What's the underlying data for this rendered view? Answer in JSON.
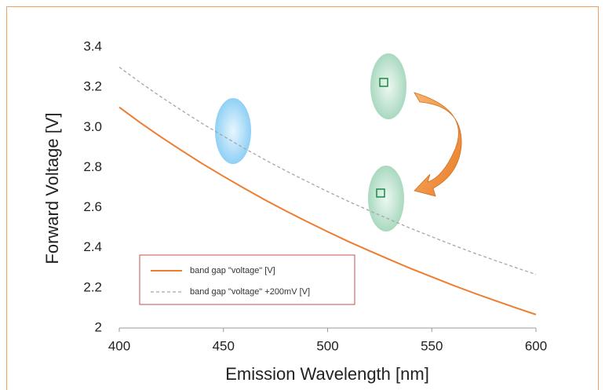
{
  "chart_data": {
    "type": "line",
    "x_label": "Emission Wavelength [nm]",
    "y_label": "Forward Voltage [V]",
    "x": [
      400,
      410,
      420,
      430,
      440,
      450,
      460,
      470,
      480,
      490,
      500,
      510,
      520,
      530,
      540,
      550,
      560,
      570,
      580,
      590,
      600
    ],
    "series": [
      {
        "name": "band gap \"voltage\" [V]",
        "color": "#ed7d31",
        "style": "solid",
        "values": [
          3.1,
          3.024,
          2.952,
          2.884,
          2.818,
          2.756,
          2.696,
          2.638,
          2.583,
          2.531,
          2.48,
          2.431,
          2.385,
          2.34,
          2.296,
          2.255,
          2.214,
          2.175,
          2.138,
          2.102,
          2.067
        ]
      },
      {
        "name": "band gap \"voltage\" +200mV [V]",
        "color": "#a6a6a6",
        "style": "dashed",
        "values": [
          3.3,
          3.224,
          3.152,
          3.084,
          3.018,
          2.956,
          2.896,
          2.838,
          2.783,
          2.731,
          2.68,
          2.631,
          2.585,
          2.54,
          2.496,
          2.455,
          2.414,
          2.375,
          2.338,
          2.302,
          2.267
        ]
      }
    ],
    "xlim": [
      400,
      600
    ],
    "xticks": [
      400,
      450,
      500,
      550,
      600
    ],
    "ylim": [
      2,
      3.4
    ],
    "yticks": [
      2,
      2.2,
      2.4,
      2.6,
      2.8,
      {
        "value": 3,
        "label": "3.0"
      },
      3.2,
      3.4
    ],
    "grid": false,
    "legend": "lower left"
  }
}
